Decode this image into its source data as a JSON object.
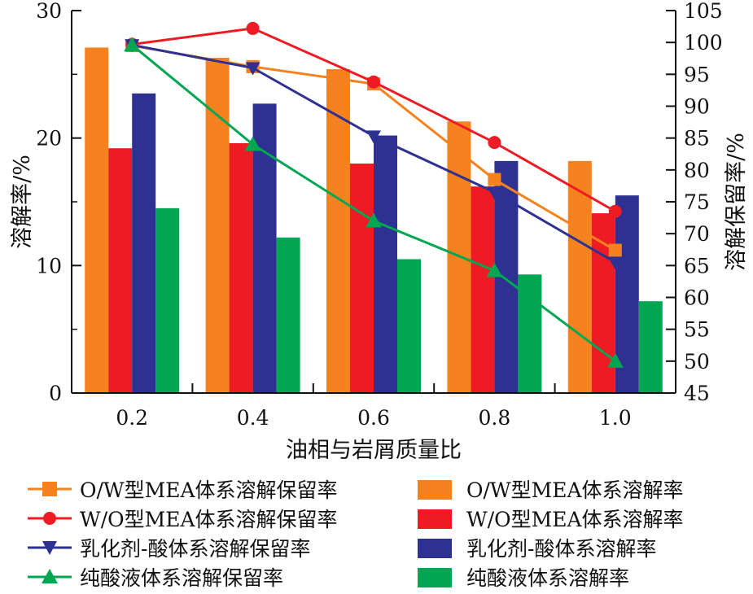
{
  "chart_data": {
    "type": "bar",
    "xlabel": "油相与岩屑质量比",
    "ylabel_left": "溶解率/%",
    "ylabel_right": "溶解保留率/%",
    "categories": [
      "0.2",
      "0.4",
      "0.6",
      "0.8",
      "1.0"
    ],
    "ylim_left": [
      0,
      30
    ],
    "yticks_left": [
      "0",
      "10",
      "20",
      "30"
    ],
    "ylim_right": [
      45,
      105
    ],
    "yticks_right": [
      "45",
      "50",
      "55",
      "60",
      "65",
      "70",
      "75",
      "80",
      "85",
      "90",
      "95",
      "100",
      "105"
    ],
    "bar_series": [
      {
        "name": "O/W型MEA体系溶解率",
        "color": "#F5821F",
        "values": [
          27.1,
          26.3,
          25.4,
          21.3,
          18.2
        ]
      },
      {
        "name": "W/O型MEA体系溶解率",
        "color": "#ED1C24",
        "values": [
          19.2,
          19.6,
          18.0,
          16.2,
          14.1
        ]
      },
      {
        "name": "乳化剂-酸体系溶解率",
        "color": "#2E3192",
        "values": [
          23.5,
          22.7,
          20.2,
          18.2,
          15.5
        ]
      },
      {
        "name": "纯酸液体系溶解率",
        "color": "#00A651",
        "values": [
          14.5,
          12.2,
          10.5,
          9.3,
          7.2
        ]
      }
    ],
    "line_series": [
      {
        "name": "O/W型MEA体系溶解保留率",
        "color": "#F5821F",
        "marker": "square",
        "values": [
          99.5,
          96.2,
          93.5,
          78.5,
          67.4
        ]
      },
      {
        "name": "W/O型MEA体系溶解保留率",
        "color": "#ED1C24",
        "marker": "circle",
        "values": [
          99.7,
          102.2,
          93.8,
          84.3,
          73.5
        ]
      },
      {
        "name": "乳化剂-酸体系溶解保留率",
        "color": "#2E3192",
        "marker": "triangle-down",
        "values": [
          99.6,
          96.0,
          85.3,
          76.5,
          65.5
        ]
      },
      {
        "name": "纯酸液体系溶解保留率",
        "color": "#00A651",
        "marker": "triangle-up",
        "values": [
          99.6,
          84.0,
          72.0,
          64.2,
          50.0
        ]
      }
    ]
  },
  "legend": {
    "left": [
      {
        "label": "O/W型MEA体系溶解保留率",
        "color": "#F5821F",
        "marker": "square"
      },
      {
        "label": "W/O型MEA体系溶解保留率",
        "color": "#ED1C24",
        "marker": "circle"
      },
      {
        "label": "乳化剂-酸体系溶解保留率",
        "color": "#2E3192",
        "marker": "triangle-down"
      },
      {
        "label": "纯酸液体系溶解保留率",
        "color": "#00A651",
        "marker": "triangle-up"
      }
    ],
    "right": [
      {
        "label": "O/W型MEA体系溶解率",
        "color": "#F5821F"
      },
      {
        "label": "W/O型MEA体系溶解率",
        "color": "#ED1C24"
      },
      {
        "label": "乳化剂-酸体系溶解率",
        "color": "#2E3192"
      },
      {
        "label": "纯酸液体系溶解率",
        "color": "#00A651"
      }
    ]
  }
}
